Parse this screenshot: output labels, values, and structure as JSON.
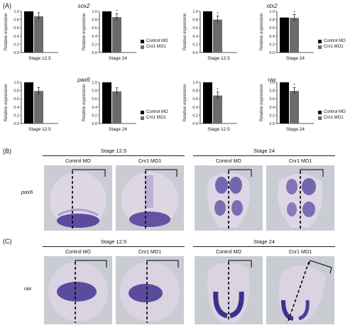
{
  "panel_labels": {
    "a": "(A)",
    "b": "(B)",
    "c": "(C)"
  },
  "colors": {
    "control": "#000000",
    "cnr1": "#6b6b6b",
    "embryo_bg": "#c9ccd2",
    "embryo": "#ddd6e4",
    "stain": "#4d3c97"
  },
  "legend": {
    "control": "Control MO",
    "cnr1": "Cnr1 MO1"
  },
  "chart_data": [
    {
      "type": "bar",
      "gene": "sox2",
      "stage": "Stage 12.5",
      "ylabel": "Relative expression",
      "ylim": [
        0,
        1.0
      ],
      "yticks": [
        "0.0",
        "0.2",
        "0.4",
        "0.6",
        "0.8",
        "1.0"
      ],
      "series": [
        {
          "name": "Control MO",
          "values": [
            1.0
          ]
        },
        {
          "name": "Cnr1 MO1",
          "values": [
            0.88
          ]
        }
      ],
      "significance": ""
    },
    {
      "type": "bar",
      "gene": "sox2",
      "stage": "Stage 24",
      "ylabel": "Relative expression",
      "ylim": [
        0,
        1.0
      ],
      "yticks": [
        "0.0",
        "0.2",
        "0.4",
        "0.6",
        "0.8",
        "1.0"
      ],
      "series": [
        {
          "name": "Control MO",
          "values": [
            1.0
          ]
        },
        {
          "name": "Cnr1 MO1",
          "values": [
            0.86
          ]
        }
      ],
      "significance": "*"
    },
    {
      "type": "bar",
      "gene": "otx2",
      "stage": "Stage 12.5",
      "ylabel": "Relative expression",
      "ylim": [
        0,
        1.0
      ],
      "yticks": [
        "0.0",
        "0.2",
        "0.4",
        "0.6",
        "0.8",
        "1.0"
      ],
      "series": [
        {
          "name": "Control MO",
          "values": [
            1.0
          ]
        },
        {
          "name": "Cnr1 MO1",
          "values": [
            0.8
          ]
        }
      ],
      "significance": "*"
    },
    {
      "type": "bar",
      "gene": "otx2",
      "stage": "Stage 24",
      "ylabel": "Relative expression",
      "ylim": [
        0,
        1.0
      ],
      "yticks": [
        "0.0",
        "0.2",
        "0.4",
        "0.6",
        "0.8",
        "1.0"
      ],
      "series": [
        {
          "name": "Control MO",
          "values": [
            0.85
          ]
        },
        {
          "name": "Cnr1 MO1",
          "values": [
            0.84
          ]
        }
      ],
      "significance": "*"
    },
    {
      "type": "bar",
      "gene": "pax6",
      "stage": "Stage 12.5",
      "ylabel": "Relative expression",
      "ylim": [
        0,
        1.0
      ],
      "yticks": [
        "0.0",
        "0.2",
        "0.4",
        "0.6",
        "0.8",
        "1.0"
      ],
      "series": [
        {
          "name": "Control MO",
          "values": [
            1.0
          ]
        },
        {
          "name": "Cnr1 MO1",
          "values": [
            0.79
          ]
        }
      ],
      "significance": ""
    },
    {
      "type": "bar",
      "gene": "pax6",
      "stage": "Stage 24",
      "ylabel": "Relative expression",
      "ylim": [
        0,
        1.0
      ],
      "yticks": [
        "0.0",
        "0.2",
        "0.4",
        "0.6",
        "0.8",
        "1.0"
      ],
      "series": [
        {
          "name": "Control MO",
          "values": [
            1.0
          ]
        },
        {
          "name": "Cnr1 MO1",
          "values": [
            0.78
          ]
        }
      ],
      "significance": ""
    },
    {
      "type": "bar",
      "gene": "rax",
      "stage": "Stage 12.5",
      "ylabel": "Relative expression",
      "ylim": [
        0,
        1.0
      ],
      "yticks": [
        "0.0",
        "0.2",
        "0.4",
        "0.6",
        "0.8",
        "1.0"
      ],
      "series": [
        {
          "name": "Control MO",
          "values": [
            1.0
          ]
        },
        {
          "name": "Cnr1 MO1",
          "values": [
            0.68
          ]
        }
      ],
      "significance": "*"
    },
    {
      "type": "bar",
      "gene": "rax",
      "stage": "Stage 24",
      "ylabel": "Relative expression",
      "ylim": [
        0,
        1.0
      ],
      "yticks": [
        "0.0",
        "0.2",
        "0.4",
        "0.6",
        "0.8",
        "1.0"
      ],
      "series": [
        {
          "name": "Control MO",
          "values": [
            1.0
          ]
        },
        {
          "name": "Cnr1 MO1",
          "values": [
            0.79
          ]
        }
      ],
      "significance": "*"
    }
  ],
  "genes": {
    "sox2": "sox2",
    "otx2": "otx2",
    "pax6": "pax6",
    "rax": "rax"
  },
  "panel_b": {
    "row_label": "pax6",
    "stage_left": "Stage 12.5",
    "stage_right": "Stage 24",
    "conditions": [
      "Control MO",
      "Cnr1 MO1",
      "Control MO",
      "Cnr1 MO1"
    ]
  },
  "panel_c": {
    "row_label": "rax",
    "stage_left": "Stage 12.5",
    "stage_right": "Stage 24",
    "conditions": [
      "Control MO",
      "Cnr1 MO1",
      "Control MO",
      "Cnr1 MO1"
    ]
  }
}
